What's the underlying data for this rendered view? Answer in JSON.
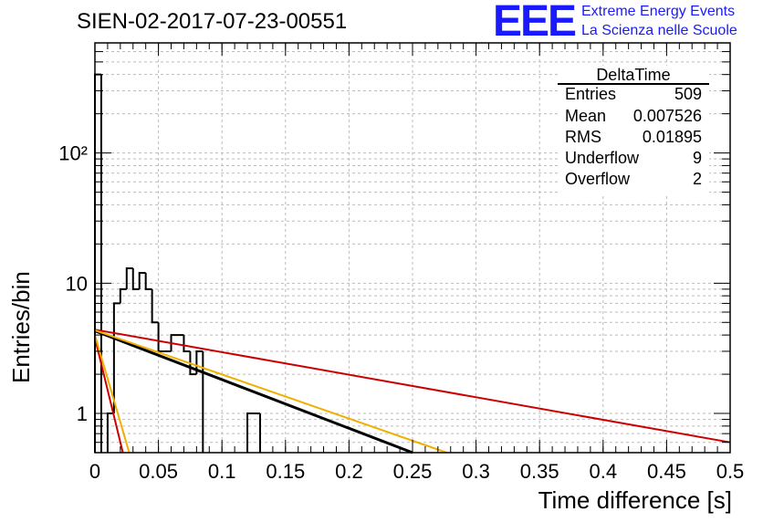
{
  "title": "SIEN-02-2017-07-23-00551",
  "logo": {
    "text": "EEE",
    "line1": "Extreme Energy Events",
    "line2": "La Scienza nelle Scuole",
    "color": "#1a1aff"
  },
  "chart_data": {
    "type": "histogram",
    "xlabel": "Time difference [s]",
    "ylabel": "Entries/bin",
    "xlim": [
      0,
      0.5
    ],
    "ylim": [
      0.5,
      700
    ],
    "yscale": "log",
    "grid": true,
    "x_ticks": [
      0,
      0.05,
      0.1,
      0.15,
      0.2,
      0.25,
      0.3,
      0.35,
      0.4,
      0.45,
      0.5
    ],
    "x_tick_labels": [
      "0",
      "0.05",
      "0.1",
      "0.15",
      "0.2",
      "0.25",
      "0.3",
      "0.35",
      "0.4",
      "0.45",
      "0.5"
    ],
    "y_tick_labels": [
      {
        "value": 1,
        "label": "1"
      },
      {
        "value": 10,
        "label": "10"
      },
      {
        "value": 100,
        "label": "10²"
      }
    ],
    "bin_width": 0.005,
    "bins": [
      {
        "x0": 0.0,
        "count": 400
      },
      {
        "x0": 0.01,
        "count": 1
      },
      {
        "x0": 0.015,
        "count": 7
      },
      {
        "x0": 0.02,
        "count": 9
      },
      {
        "x0": 0.025,
        "count": 13
      },
      {
        "x0": 0.03,
        "count": 9
      },
      {
        "x0": 0.035,
        "count": 12
      },
      {
        "x0": 0.04,
        "count": 9
      },
      {
        "x0": 0.045,
        "count": 5
      },
      {
        "x0": 0.05,
        "count": 3
      },
      {
        "x0": 0.055,
        "count": 3
      },
      {
        "x0": 0.06,
        "count": 4
      },
      {
        "x0": 0.065,
        "count": 4
      },
      {
        "x0": 0.07,
        "count": 3
      },
      {
        "x0": 0.075,
        "count": 2
      },
      {
        "x0": 0.08,
        "count": 3
      },
      {
        "x0": 0.12,
        "count": 1
      },
      {
        "x0": 0.125,
        "count": 1
      }
    ],
    "histogram_color": "#000000",
    "fit_curves": [
      {
        "color": "#cc0000",
        "points": [
          [
            0,
            3.8
          ],
          [
            0.022,
            0.5
          ]
        ]
      },
      {
        "color": "#f0b000",
        "points": [
          [
            0,
            4.0
          ],
          [
            0.027,
            0.5
          ]
        ]
      },
      {
        "color": "#cc0000",
        "points": [
          [
            0,
            4.4
          ],
          [
            0.5,
            0.6
          ]
        ]
      },
      {
        "color": "#000000",
        "points": [
          [
            0,
            4.3
          ],
          [
            0.25,
            0.5
          ]
        ]
      },
      {
        "color": "#f0b000",
        "points": [
          [
            0,
            4.35
          ],
          [
            0.277,
            0.5
          ]
        ]
      }
    ],
    "stats": {
      "title": "DeltaTime",
      "rows": [
        {
          "label": "Entries",
          "value": "509"
        },
        {
          "label": "Mean",
          "value": "0.007526"
        },
        {
          "label": "RMS",
          "value": "0.01895"
        },
        {
          "label": "Underflow",
          "value": "9"
        },
        {
          "label": "Overflow",
          "value": "2"
        }
      ]
    }
  }
}
